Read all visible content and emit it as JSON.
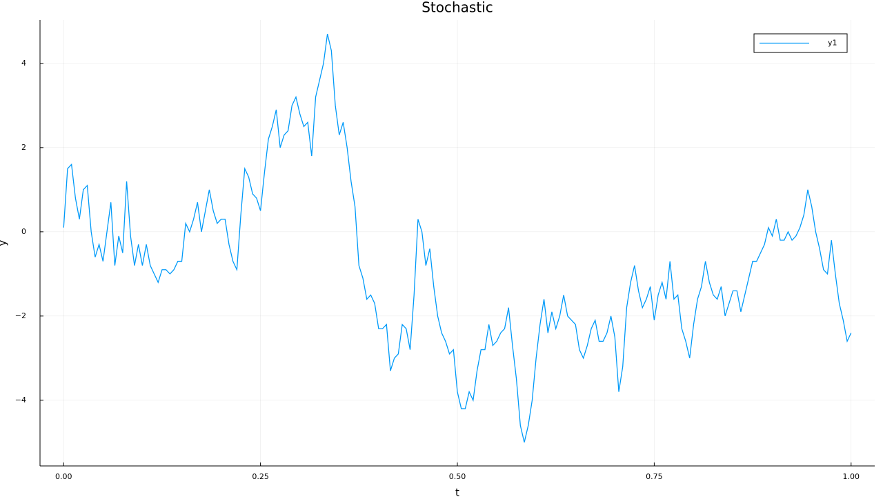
{
  "chart_data": {
    "type": "line",
    "title": "Stochastic",
    "x_label": "t",
    "y_label": "y",
    "x": [
      0,
      0.005,
      0.01,
      0.015,
      0.02,
      0.025,
      0.03,
      0.035,
      0.04,
      0.045,
      0.05,
      0.055,
      0.06,
      0.065,
      0.07,
      0.075,
      0.08,
      0.085,
      0.09,
      0.095,
      0.1,
      0.105,
      0.11,
      0.115,
      0.12,
      0.125,
      0.13,
      0.135,
      0.14,
      0.145,
      0.15,
      0.155,
      0.16,
      0.165,
      0.17,
      0.175,
      0.18,
      0.185,
      0.19,
      0.195,
      0.2,
      0.205,
      0.21,
      0.215,
      0.22,
      0.225,
      0.23,
      0.235,
      0.24,
      0.245,
      0.25,
      0.255,
      0.26,
      0.265,
      0.27,
      0.275,
      0.28,
      0.285,
      0.29,
      0.295,
      0.3,
      0.305,
      0.31,
      0.315,
      0.32,
      0.325,
      0.33,
      0.335,
      0.34,
      0.345,
      0.35,
      0.355,
      0.36,
      0.365,
      0.37,
      0.375,
      0.38,
      0.385,
      0.39,
      0.395,
      0.4,
      0.405,
      0.41,
      0.415,
      0.42,
      0.425,
      0.43,
      0.435,
      0.44,
      0.445,
      0.45,
      0.455,
      0.46,
      0.465,
      0.47,
      0.475,
      0.48,
      0.485,
      0.49,
      0.495,
      0.5,
      0.505,
      0.51,
      0.515,
      0.52,
      0.525,
      0.53,
      0.535,
      0.54,
      0.545,
      0.55,
      0.555,
      0.56,
      0.565,
      0.57,
      0.575,
      0.58,
      0.585,
      0.59,
      0.595,
      0.6,
      0.605,
      0.61,
      0.615,
      0.62,
      0.625,
      0.63,
      0.635,
      0.64,
      0.645,
      0.65,
      0.655,
      0.66,
      0.665,
      0.67,
      0.675,
      0.68,
      0.685,
      0.69,
      0.695,
      0.7,
      0.705,
      0.71,
      0.715,
      0.72,
      0.725,
      0.73,
      0.735,
      0.74,
      0.745,
      0.75,
      0.755,
      0.76,
      0.765,
      0.77,
      0.775,
      0.78,
      0.785,
      0.79,
      0.795,
      0.8,
      0.805,
      0.81,
      0.815,
      0.82,
      0.825,
      0.83,
      0.835,
      0.84,
      0.845,
      0.85,
      0.855,
      0.86,
      0.865,
      0.87,
      0.875,
      0.88,
      0.885,
      0.89,
      0.895,
      0.9,
      0.905,
      0.91,
      0.915,
      0.92,
      0.925,
      0.93,
      0.935,
      0.94,
      0.945,
      0.95,
      0.955,
      0.96,
      0.965,
      0.97,
      0.975,
      0.98,
      0.985,
      0.99,
      0.995,
      1
    ],
    "series": [
      {
        "name": "y1",
        "color": "#009af9",
        "values": [
          0.1,
          1.5,
          1.6,
          0.8,
          0.3,
          1.0,
          1.1,
          0.0,
          -0.6,
          -0.3,
          -0.7,
          0.0,
          0.7,
          -0.8,
          -0.1,
          -0.5,
          1.2,
          -0.1,
          -0.8,
          -0.3,
          -0.8,
          -0.3,
          -0.8,
          -1.0,
          -1.2,
          -0.9,
          -0.9,
          -1.0,
          -0.9,
          -0.7,
          -0.7,
          0.2,
          0.0,
          0.3,
          0.7,
          0.0,
          0.5,
          1.0,
          0.5,
          0.2,
          0.3,
          0.3,
          -0.3,
          -0.7,
          -0.9,
          0.4,
          1.5,
          1.3,
          0.9,
          0.8,
          0.5,
          1.4,
          2.2,
          2.5,
          2.9,
          2.0,
          2.3,
          2.4,
          3.0,
          3.2,
          2.8,
          2.5,
          2.6,
          1.8,
          3.2,
          3.6,
          4.0,
          4.7,
          4.3,
          3.0,
          2.3,
          2.6,
          2.0,
          1.2,
          0.6,
          -0.8,
          -1.1,
          -1.6,
          -1.5,
          -1.7,
          -2.3,
          -2.3,
          -2.2,
          -3.3,
          -3.0,
          -2.9,
          -2.2,
          -2.3,
          -2.8,
          -1.5,
          0.3,
          0.0,
          -0.8,
          -0.4,
          -1.3,
          -2.0,
          -2.4,
          -2.6,
          -2.9,
          -2.8,
          -3.8,
          -4.2,
          -4.2,
          -3.8,
          -4.0,
          -3.3,
          -2.8,
          -2.8,
          -2.2,
          -2.7,
          -2.6,
          -2.4,
          -2.3,
          -1.8,
          -2.7,
          -3.5,
          -4.6,
          -5.0,
          -4.6,
          -4.0,
          -3.0,
          -2.2,
          -1.6,
          -2.4,
          -1.9,
          -2.3,
          -2.0,
          -1.5,
          -2.0,
          -2.1,
          -2.2,
          -2.8,
          -3.0,
          -2.7,
          -2.3,
          -2.1,
          -2.6,
          -2.6,
          -2.4,
          -2.0,
          -2.5,
          -3.8,
          -3.2,
          -1.8,
          -1.2,
          -0.8,
          -1.4,
          -1.8,
          -1.6,
          -1.3,
          -2.1,
          -1.5,
          -1.2,
          -1.6,
          -0.7,
          -1.6,
          -1.5,
          -2.3,
          -2.6,
          -3.0,
          -2.2,
          -1.6,
          -1.3,
          -0.7,
          -1.2,
          -1.5,
          -1.6,
          -1.3,
          -2.0,
          -1.7,
          -1.4,
          -1.4,
          -1.9,
          -1.5,
          -1.1,
          -0.7,
          -0.7,
          -0.5,
          -0.3,
          0.1,
          -0.1,
          0.3,
          -0.2,
          -0.2,
          0.0,
          -0.2,
          -0.1,
          0.1,
          0.4,
          1.0,
          0.6,
          0.0,
          -0.4,
          -0.9,
          -1.0,
          -0.2,
          -1.0,
          -1.7,
          -2.1,
          -2.6,
          -2.4
        ]
      }
    ],
    "xlim": [
      -0.03,
      1.03
    ],
    "ylim": [
      -5.56,
      5.03
    ],
    "xticks": [
      {
        "value": 0,
        "label": "0.00"
      },
      {
        "value": 0.25,
        "label": "0.25"
      },
      {
        "value": 0.5,
        "label": "0.50"
      },
      {
        "value": 0.75,
        "label": "0.75"
      },
      {
        "value": 1,
        "label": "1.00"
      }
    ],
    "yticks": [
      {
        "value": -4,
        "label": "−4"
      },
      {
        "value": -2,
        "label": "−2"
      },
      0,
      2,
      4
    ],
    "grid": true,
    "legend": "top-right"
  }
}
